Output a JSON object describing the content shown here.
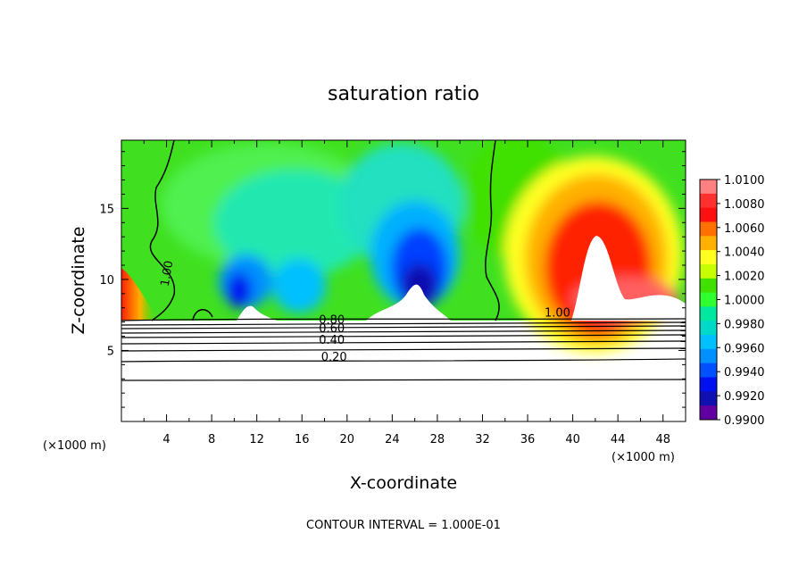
{
  "chart_data": {
    "type": "heatmap",
    "title": "saturation ratio",
    "xlabel": "X-coordinate",
    "ylabel": "Z-coordinate",
    "x_unit": "(×1000 m)",
    "x_ticks": [
      4,
      8,
      12,
      16,
      20,
      24,
      28,
      32,
      36,
      40,
      44,
      48
    ],
    "y_ticks": [
      5,
      10,
      15
    ],
    "xlim": [
      0,
      50
    ],
    "ylim": [
      0,
      19.8
    ],
    "footer": "CONTOUR INTERVAL = 1.000E-01",
    "colorbar": {
      "levels": [
        "1.0100",
        "1.0080",
        "1.0060",
        "1.0040",
        "1.0020",
        "1.0000",
        "0.9980",
        "0.9960",
        "0.9940",
        "0.9920",
        "0.9900"
      ],
      "colors": [
        "#ff8080",
        "#ff3030",
        "#ff1010",
        "#ff7000",
        "#ffb000",
        "#ffff20",
        "#c8ff00",
        "#40e000",
        "#30ff30",
        "#00e8a0",
        "#00d8c8",
        "#00c0ff",
        "#0090ff",
        "#0050ff",
        "#0010f0",
        "#1010b0",
        "#6000a0"
      ]
    },
    "contour_lines": [
      {
        "label": "0.20",
        "z": 4.4,
        "label_x": 17.7
      },
      {
        "label": "0.40",
        "z": 5.6,
        "label_x": 17.5
      },
      {
        "label": "0.60",
        "z": 6.4,
        "label_x": 17.5
      },
      {
        "label": "0.80",
        "z": 7.0,
        "label_x": 17.5
      },
      {
        "label": "1.00",
        "z": 7.5,
        "label_x": 37.5
      },
      {
        "label": "1.00",
        "z": 9.5,
        "label_x": 4.0
      }
    ],
    "grid": false
  }
}
